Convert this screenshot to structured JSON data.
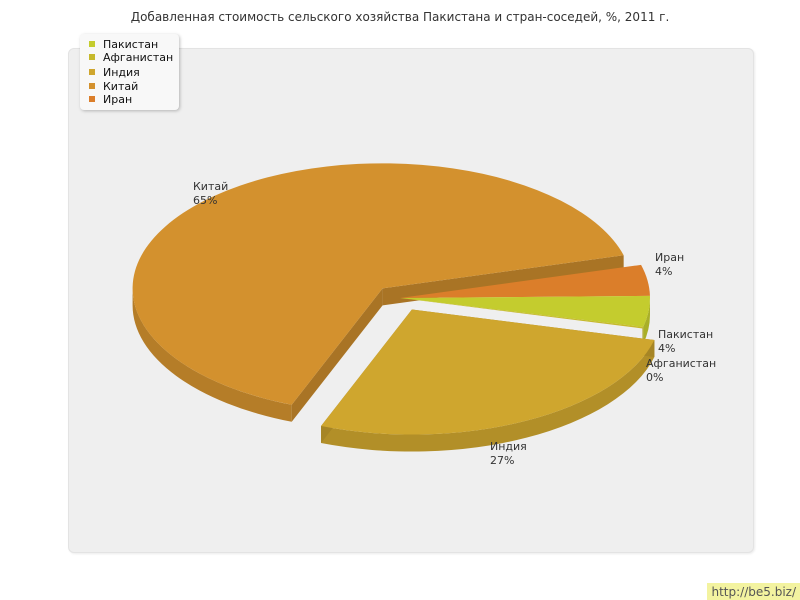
{
  "colors": {
    "background": "#ffffff",
    "plot_background": "#efefef",
    "watermark_bg": "#f3f3a0"
  },
  "watermark": "http://be5.biz/",
  "chart_data": {
    "type": "pie",
    "title": "Добавленная стоимость сельского хозяйства Пакистана и стран-соседей, %, 2011 г.",
    "legend_position": "top-left",
    "three_d": true,
    "slices": [
      {
        "name": "Пакистан",
        "value": 4,
        "label": "4%",
        "color": "#c4cc2e",
        "exploded": false
      },
      {
        "name": "Афганистан",
        "value": 0,
        "label": "0%",
        "color": "#c6b92c",
        "exploded": false
      },
      {
        "name": "Индия",
        "value": 27,
        "label": "27%",
        "color": "#cfa62e",
        "exploded": true
      },
      {
        "name": "Китай",
        "value": 65,
        "label": "65%",
        "color": "#d3912e",
        "exploded": true
      },
      {
        "name": "Иран",
        "value": 4,
        "label": "4%",
        "color": "#db7e2a",
        "exploded": false
      }
    ]
  }
}
